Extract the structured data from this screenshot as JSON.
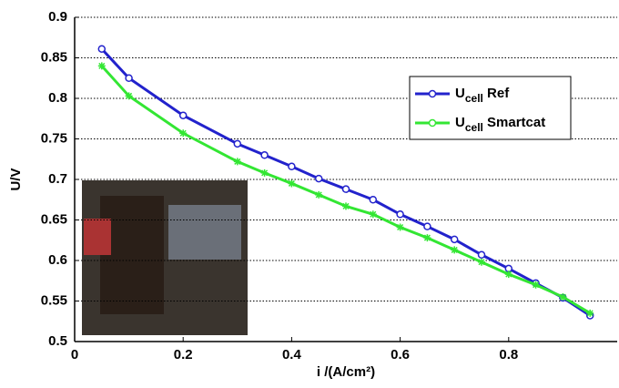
{
  "chart_data": {
    "type": "line",
    "x": [
      0.05,
      0.1,
      0.2,
      0.3,
      0.35,
      0.4,
      0.45,
      0.5,
      0.55,
      0.6,
      0.65,
      0.7,
      0.75,
      0.8,
      0.85,
      0.9,
      0.95
    ],
    "series": [
      {
        "name": "Ucell Ref",
        "color": "#2222cc",
        "values": [
          0.861,
          0.825,
          0.779,
          0.744,
          0.73,
          0.716,
          0.701,
          0.688,
          0.675,
          0.657,
          0.642,
          0.626,
          0.607,
          0.59,
          0.572,
          0.554,
          0.532
        ]
      },
      {
        "name": "Ucell Smartcat",
        "color": "#33e633",
        "values": [
          0.84,
          0.803,
          0.757,
          0.722,
          0.708,
          0.695,
          0.681,
          0.667,
          0.657,
          0.641,
          0.628,
          0.613,
          0.598,
          0.583,
          0.57,
          0.555,
          0.535
        ]
      }
    ],
    "xlabel": "i /(A/cm²)",
    "ylabel": "U/V",
    "xlim": [
      0,
      1
    ],
    "xticks": [
      0,
      0.2,
      0.4,
      0.6,
      0.8
    ],
    "ylim": [
      0.5,
      0.9
    ],
    "yticks": [
      0.5,
      0.55,
      0.6,
      0.65,
      0.7,
      0.75,
      0.8,
      0.85,
      0.9
    ],
    "grid": true,
    "legend": "upper right"
  }
}
